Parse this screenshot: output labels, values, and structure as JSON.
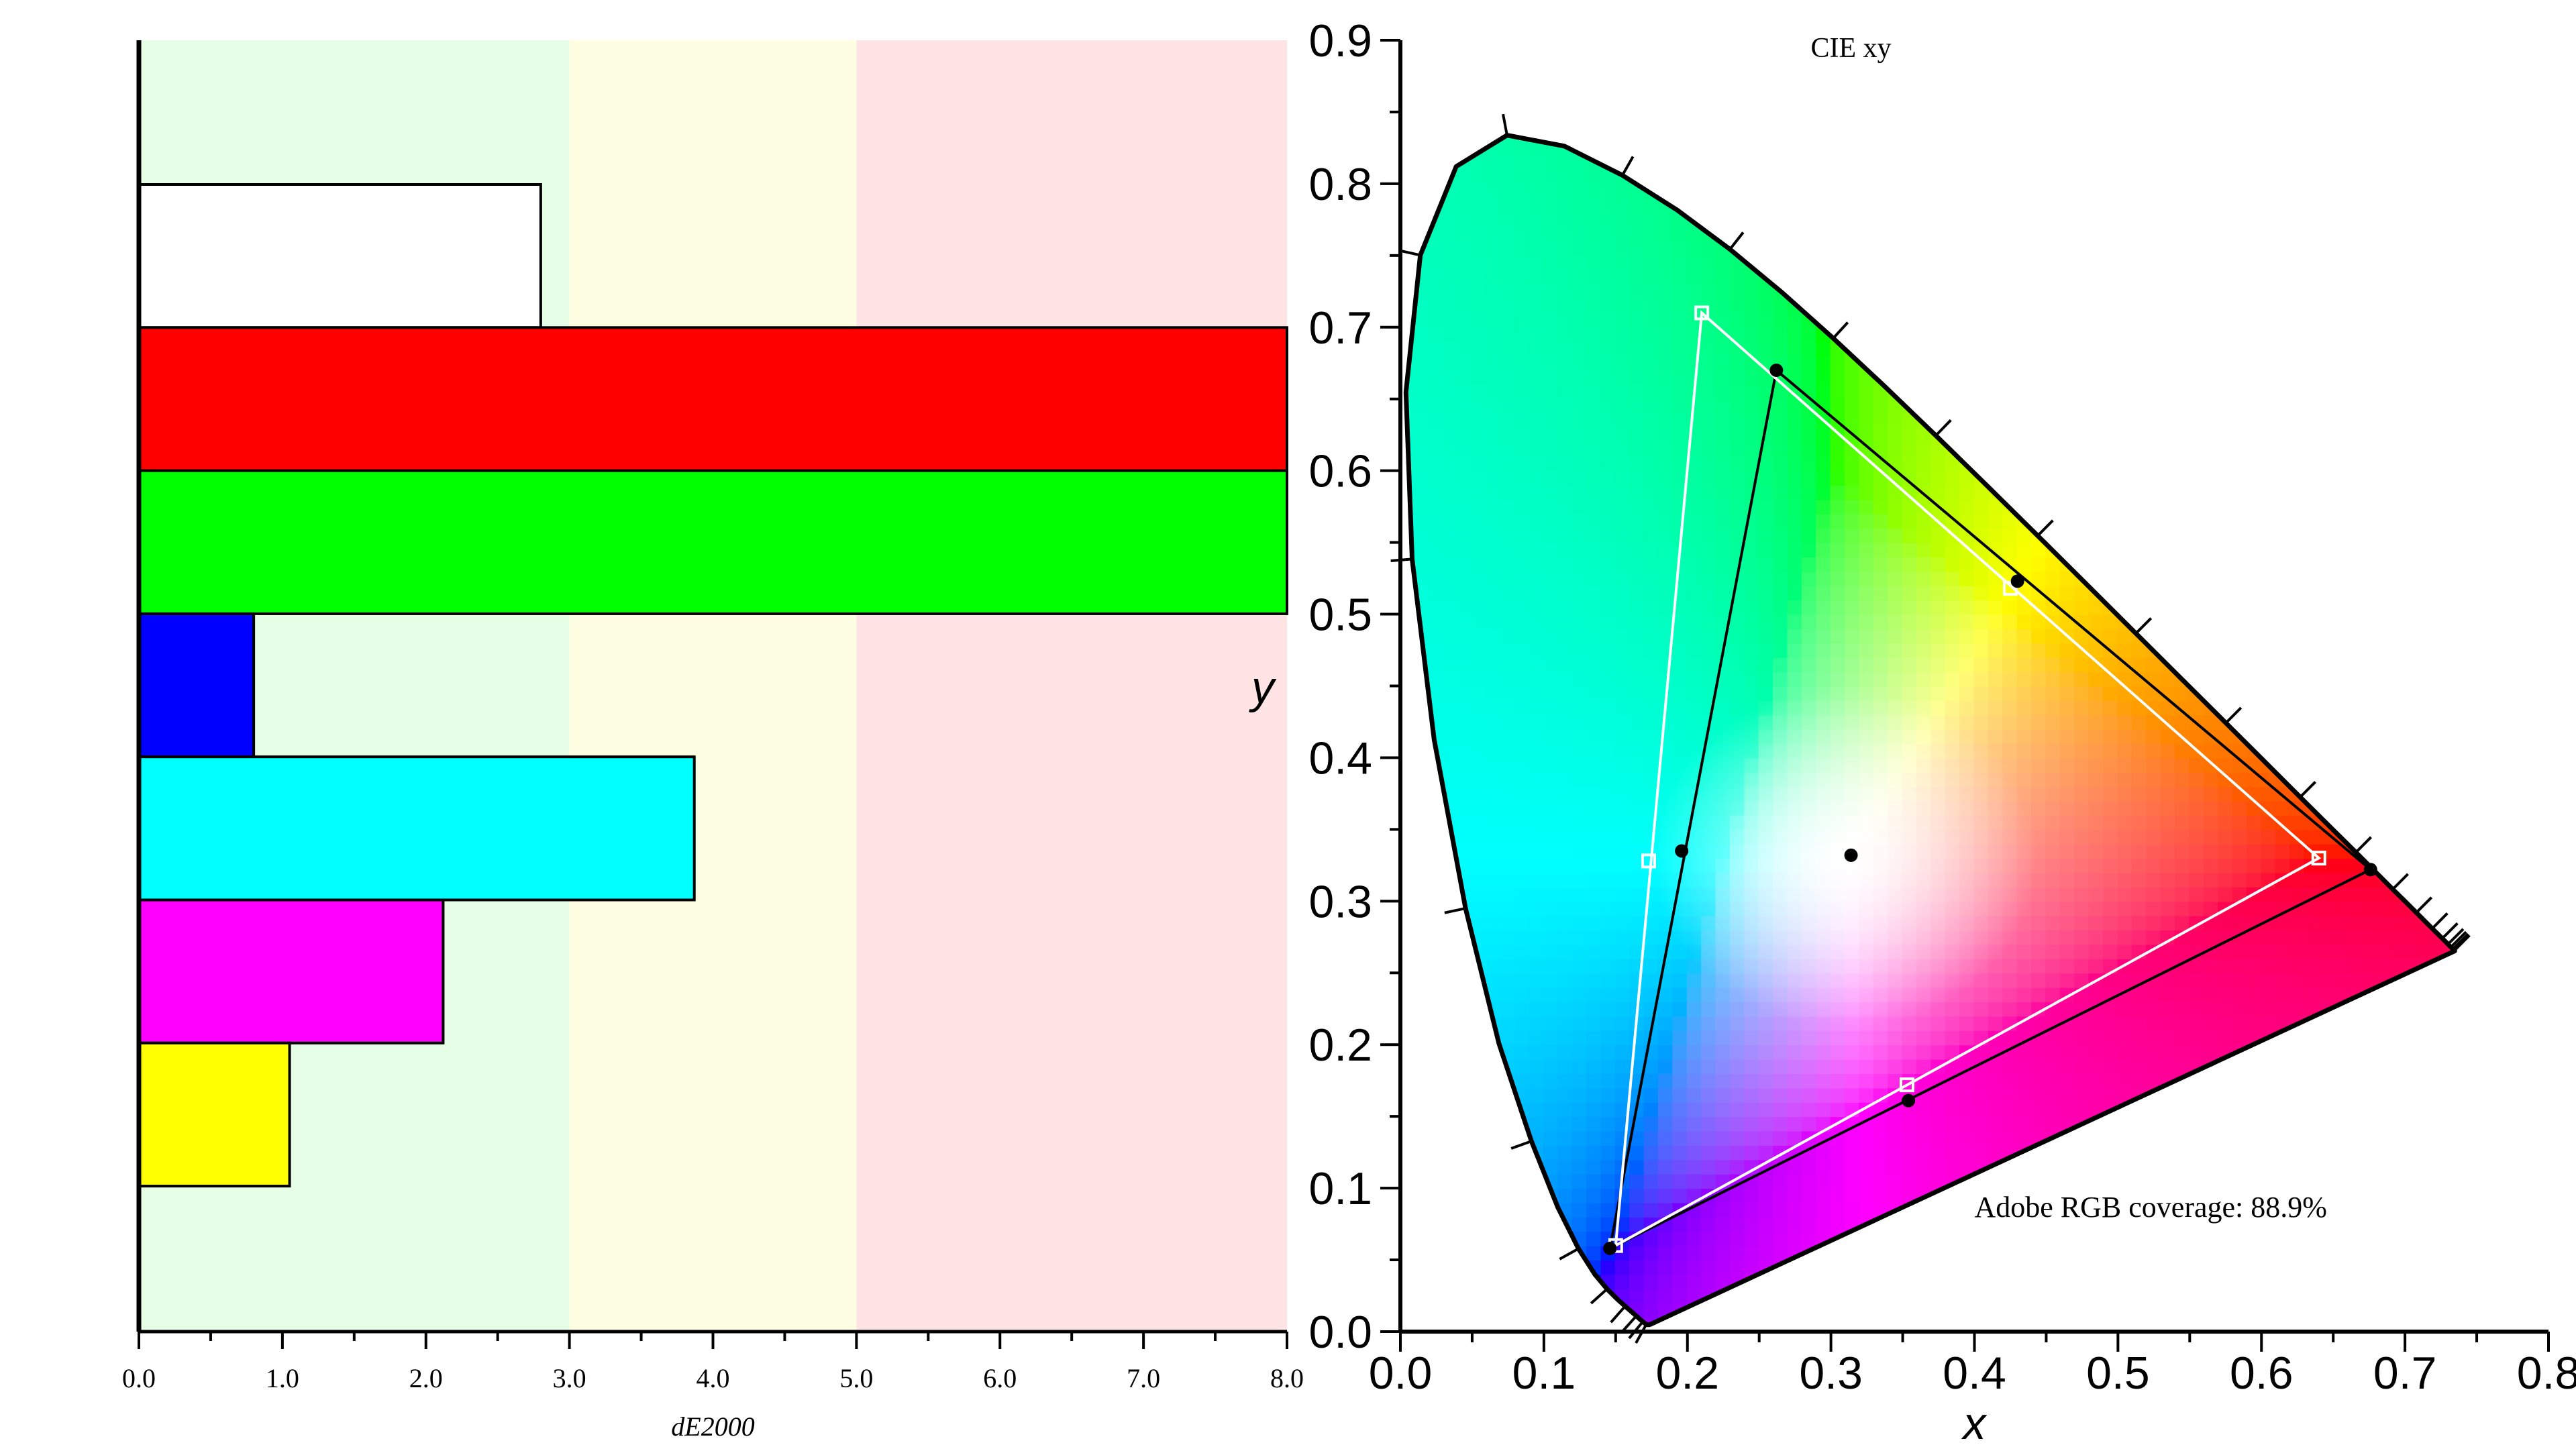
{
  "chart_data": [
    {
      "type": "bar",
      "orientation": "horizontal",
      "xlabel": "dE2000",
      "xlim": [
        0,
        8
      ],
      "x_ticks": [
        "0.0",
        "1.0",
        "2.0",
        "3.0",
        "4.0",
        "5.0",
        "6.0",
        "7.0",
        "8.0"
      ],
      "bands": [
        {
          "from": 0,
          "to": 3,
          "color": "#e6fde6"
        },
        {
          "from": 3,
          "to": 5,
          "color": "#fefee3"
        },
        {
          "from": 5,
          "to": 8,
          "color": "#fee4e4"
        }
      ],
      "bars": [
        {
          "value": 2.8,
          "color": "#ffffff"
        },
        {
          "value": 8.0,
          "color": "#ff0000"
        },
        {
          "value": 8.0,
          "color": "#00ff00"
        },
        {
          "value": 0.8,
          "color": "#0000ff"
        },
        {
          "value": 3.87,
          "color": "#00ffff"
        },
        {
          "value": 2.12,
          "color": "#ff00ff"
        },
        {
          "value": 1.05,
          "color": "#ffff00"
        }
      ]
    },
    {
      "type": "scatter",
      "title": "CIE xy",
      "xlabel": "x",
      "ylabel": "y",
      "xlim": [
        0,
        0.8
      ],
      "ylim": [
        0,
        0.9
      ],
      "x_ticks": [
        "0.0",
        "0.1",
        "0.2",
        "0.3",
        "0.4",
        "0.5",
        "0.6",
        "0.7",
        "0.8"
      ],
      "y_ticks": [
        "0.0",
        "0.1",
        "0.2",
        "0.3",
        "0.4",
        "0.5",
        "0.6",
        "0.7",
        "0.8",
        "0.9"
      ],
      "annotation": "Adobe RGB coverage: 88.9%",
      "series": [
        {
          "marker": "filled-circle",
          "color": "#000000",
          "points": [
            {
              "x": 0.262,
              "y": 0.67
            },
            {
              "x": 0.43,
              "y": 0.523
            },
            {
              "x": 0.676,
              "y": 0.322
            },
            {
              "x": 0.354,
              "y": 0.161
            },
            {
              "x": 0.146,
              "y": 0.058
            },
            {
              "x": 0.196,
              "y": 0.335
            },
            {
              "x": 0.314,
              "y": 0.332
            }
          ]
        },
        {
          "marker": "open-square",
          "color": "#ffffff",
          "points": [
            {
              "x": 0.21,
              "y": 0.71
            },
            {
              "x": 0.425,
              "y": 0.518
            },
            {
              "x": 0.64,
              "y": 0.33
            },
            {
              "x": 0.353,
              "y": 0.172
            },
            {
              "x": 0.15,
              "y": 0.06
            },
            {
              "x": 0.173,
              "y": 0.328
            },
            {
              "x": 0.313,
              "y": 0.329
            }
          ]
        }
      ]
    }
  ]
}
